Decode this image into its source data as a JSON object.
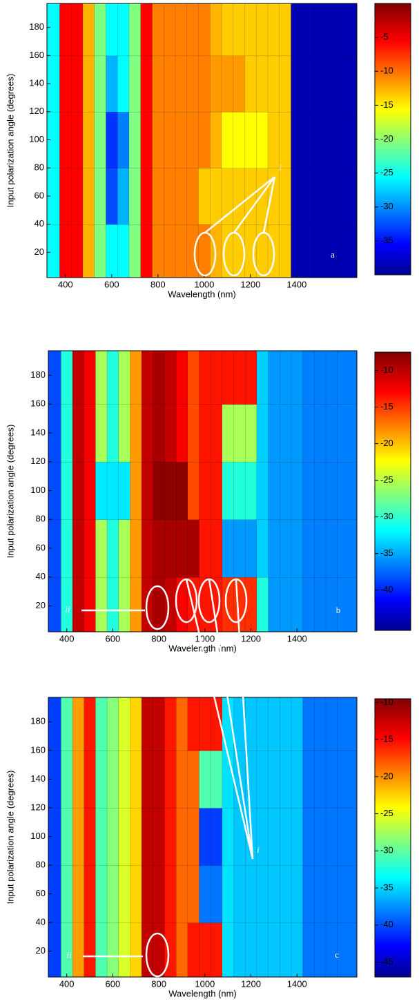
{
  "chart_data": [
    {
      "type": "heatmap",
      "x_label": "Wavelength (nm)",
      "y_label": "Input polarization angle (degrees)",
      "panel_label": "a",
      "x": [
        350,
        400,
        450,
        500,
        550,
        600,
        650,
        700,
        750,
        800,
        850,
        900,
        950,
        1000,
        1050,
        1100,
        1150,
        1200,
        1250,
        1300,
        1350,
        1400,
        1450,
        1500,
        1550,
        1600
      ],
      "y": [
        20,
        60,
        100,
        140,
        180
      ],
      "z": [
        [
          -25,
          -5,
          -5,
          -12,
          -20,
          -25,
          -25,
          -20,
          -5,
          -10,
          -10,
          -10,
          -10,
          -10,
          -12,
          -13,
          -13,
          -13,
          -13,
          -13,
          -13,
          -38,
          -38,
          -38,
          -38,
          -38
        ],
        [
          -25,
          -5,
          -5,
          -12,
          -20,
          -32,
          -28,
          -20,
          -5,
          -10,
          -10,
          -10,
          -10,
          -13,
          -13,
          -13,
          -13,
          -13,
          -13,
          -13,
          -13,
          -38,
          -38,
          -38,
          -38,
          -38
        ],
        [
          -25,
          -5,
          -5,
          -12,
          -20,
          -33,
          -30,
          -20,
          -5,
          -10,
          -10,
          -10,
          -10,
          -10,
          -12,
          -15,
          -15,
          -15,
          -15,
          -13,
          -13,
          -38,
          -38,
          -38,
          -38,
          -38
        ],
        [
          -25,
          -5,
          -5,
          -12,
          -20,
          -28,
          -25,
          -20,
          -5,
          -10,
          -10,
          -10,
          -10,
          -10,
          -11,
          -11,
          -11,
          -13,
          -13,
          -13,
          -13,
          -38,
          -38,
          -38,
          -38,
          -38
        ],
        [
          -25,
          -5,
          -5,
          -12,
          -20,
          -25,
          -25,
          -20,
          -5,
          -10,
          -10,
          -10,
          -10,
          -10,
          -12,
          -13,
          -13,
          -13,
          -13,
          -13,
          -13,
          -38,
          -38,
          -38,
          -38,
          -38
        ]
      ],
      "xlim": [
        320,
        1660
      ],
      "ylim": [
        2,
        197
      ],
      "xticks": [
        400,
        600,
        800,
        1000,
        1200,
        1400
      ],
      "yticks": [
        20,
        40,
        60,
        80,
        100,
        120,
        140,
        160,
        180
      ],
      "colorbar": {
        "lim": [
          -40,
          0
        ],
        "ticks": [
          -5,
          -10,
          -15,
          -20,
          -25,
          -30,
          -35
        ]
      }
    },
    {
      "type": "heatmap",
      "x_label": "Wavelength (nm)",
      "y_label": "Input polarization angle (degrees)",
      "panel_label": "b",
      "annotations": [
        "i",
        "ii"
      ],
      "x": [
        350,
        400,
        450,
        500,
        550,
        600,
        650,
        700,
        750,
        800,
        850,
        900,
        950,
        1000,
        1050,
        1100,
        1150,
        1200,
        1250,
        1300,
        1350,
        1400,
        1450,
        1500,
        1550,
        1600
      ],
      "y": [
        20,
        60,
        100,
        140,
        180
      ],
      "z": [
        [
          -38,
          -30,
          -10,
          -12,
          -25,
          -30,
          -25,
          -18,
          -10,
          -9,
          -10,
          -12,
          -13,
          -13,
          -13,
          -14,
          -14,
          -14,
          -30,
          -35,
          -35,
          -35,
          -36,
          -36,
          -36,
          -36
        ],
        [
          -38,
          -30,
          -10,
          -12,
          -25,
          -30,
          -25,
          -18,
          -10,
          -9,
          -9,
          -9,
          -9,
          -13,
          -13,
          -35,
          -35,
          -35,
          -33,
          -35,
          -35,
          -35,
          -36,
          -36,
          -36,
          -36
        ],
        [
          -38,
          -30,
          -10,
          -12,
          -32,
          -32,
          -32,
          -18,
          -10,
          -8,
          -8,
          -8,
          -15,
          -13,
          -13,
          -30,
          -30,
          -30,
          -33,
          -35,
          -35,
          -35,
          -36,
          -36,
          -36,
          -36
        ],
        [
          -38,
          -30,
          -10,
          -12,
          -25,
          -30,
          -25,
          -18,
          -10,
          -9,
          -10,
          -12,
          -15,
          -13,
          -13,
          -25,
          -25,
          -25,
          -33,
          -35,
          -35,
          -35,
          -36,
          -36,
          -36,
          -36
        ],
        [
          -38,
          -30,
          -10,
          -12,
          -25,
          -30,
          -25,
          -18,
          -10,
          -9,
          -10,
          -12,
          -15,
          -13,
          -13,
          -13,
          -13,
          -13,
          -33,
          -35,
          -35,
          -35,
          -36,
          -36,
          -36,
          -36
        ]
      ],
      "xlim": [
        320,
        1660
      ],
      "ylim": [
        2,
        197
      ],
      "xticks": [
        400,
        600,
        800,
        1000,
        1200,
        1400
      ],
      "yticks": [
        20,
        40,
        60,
        80,
        100,
        120,
        140,
        160,
        180
      ],
      "colorbar": {
        "lim": [
          -45.5,
          -7.5
        ],
        "ticks": [
          -10,
          -15,
          -20,
          -25,
          -30,
          -35,
          -40
        ]
      }
    },
    {
      "type": "heatmap",
      "x_label": "Wavelength (nm)",
      "y_label": "Input polarization angle (degrees)",
      "panel_label": "c",
      "annotations": [
        "i",
        "ii"
      ],
      "x": [
        350,
        400,
        450,
        500,
        550,
        600,
        650,
        700,
        750,
        800,
        850,
        900,
        950,
        1000,
        1050,
        1100,
        1150,
        1200,
        1250,
        1300,
        1350,
        1400,
        1450,
        1500,
        1550,
        1600
      ],
      "y": [
        20,
        60,
        100,
        140,
        180
      ],
      "z": [
        [
          -40,
          -30,
          -20,
          -15,
          -30,
          -28,
          -25,
          -22,
          -12,
          -12,
          -15,
          -18,
          -15,
          -15,
          -15,
          -34,
          -35,
          -35,
          -35,
          -35,
          -35,
          -35,
          -38,
          -38,
          -38,
          -38
        ],
        [
          -40,
          -30,
          -20,
          -15,
          -30,
          -28,
          -25,
          -22,
          -12,
          -12,
          -15,
          -18,
          -18,
          -38,
          -38,
          -34,
          -35,
          -35,
          -35,
          -35,
          -35,
          -35,
          -38,
          -38,
          -38,
          -38
        ],
        [
          -40,
          -30,
          -20,
          -15,
          -30,
          -28,
          -25,
          -22,
          -12,
          -12,
          -15,
          -18,
          -18,
          -40,
          -40,
          -34,
          -35,
          -35,
          -35,
          -35,
          -35,
          -35,
          -38,
          -38,
          -38,
          -38
        ],
        [
          -40,
          -30,
          -20,
          -15,
          -30,
          -28,
          -25,
          -22,
          -12,
          -12,
          -15,
          -18,
          -18,
          -30,
          -30,
          -34,
          -35,
          -35,
          -35,
          -35,
          -35,
          -35,
          -38,
          -38,
          -38,
          -38
        ],
        [
          -40,
          -30,
          -20,
          -15,
          -30,
          -28,
          -25,
          -22,
          -12,
          -12,
          -15,
          -18,
          -15,
          -15,
          -15,
          -34,
          -35,
          -35,
          -35,
          -35,
          -35,
          -35,
          -38,
          -38,
          -38,
          -38
        ]
      ],
      "xlim": [
        320,
        1660
      ],
      "ylim": [
        2,
        197
      ],
      "xticks": [
        400,
        600,
        800,
        1000,
        1200,
        1400
      ],
      "yticks": [
        20,
        40,
        60,
        80,
        100,
        120,
        140,
        160,
        180
      ],
      "colorbar": {
        "lim": [
          -47,
          -9.5
        ],
        "ticks": [
          -10,
          -15,
          -20,
          -25,
          -30,
          -35,
          -40,
          -45
        ]
      }
    }
  ]
}
